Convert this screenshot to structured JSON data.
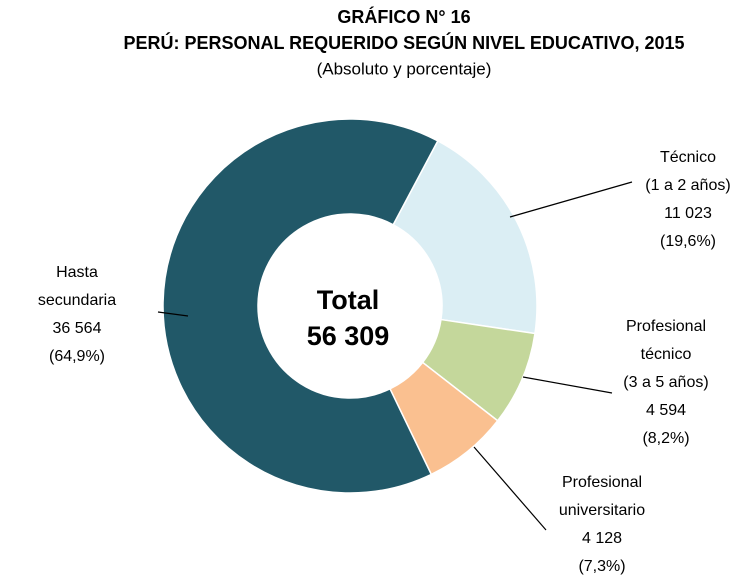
{
  "chart_data": {
    "type": "donut",
    "title": "GRÁFICO N° 16",
    "subtitle": "PERÚ: PERSONAL REQUERIDO SEGÚN NIVEL EDUCATIVO, 2015",
    "note": "(Absoluto y porcentaje)",
    "categories": [
      [
        "Técnico",
        "(1 a 2 años)"
      ],
      [
        "Profesional",
        "técnico",
        "(3 a 5 años)"
      ],
      [
        "Profesional",
        "universitario"
      ],
      [
        "Hasta",
        "secundaria"
      ]
    ],
    "values": [
      11023,
      4594,
      4128,
      36564
    ],
    "value_labels": [
      "11 023",
      "4 594",
      "4 128",
      "36 564"
    ],
    "percent_labels": [
      "(19,6%)",
      "(8,2%)",
      "(7,3%)",
      "(64,9%)"
    ],
    "colors": [
      "#dbeef4",
      "#c4d79b",
      "#fac090",
      "#215868"
    ],
    "center_label": "Total",
    "total": 56309,
    "total_label": "56 309"
  }
}
